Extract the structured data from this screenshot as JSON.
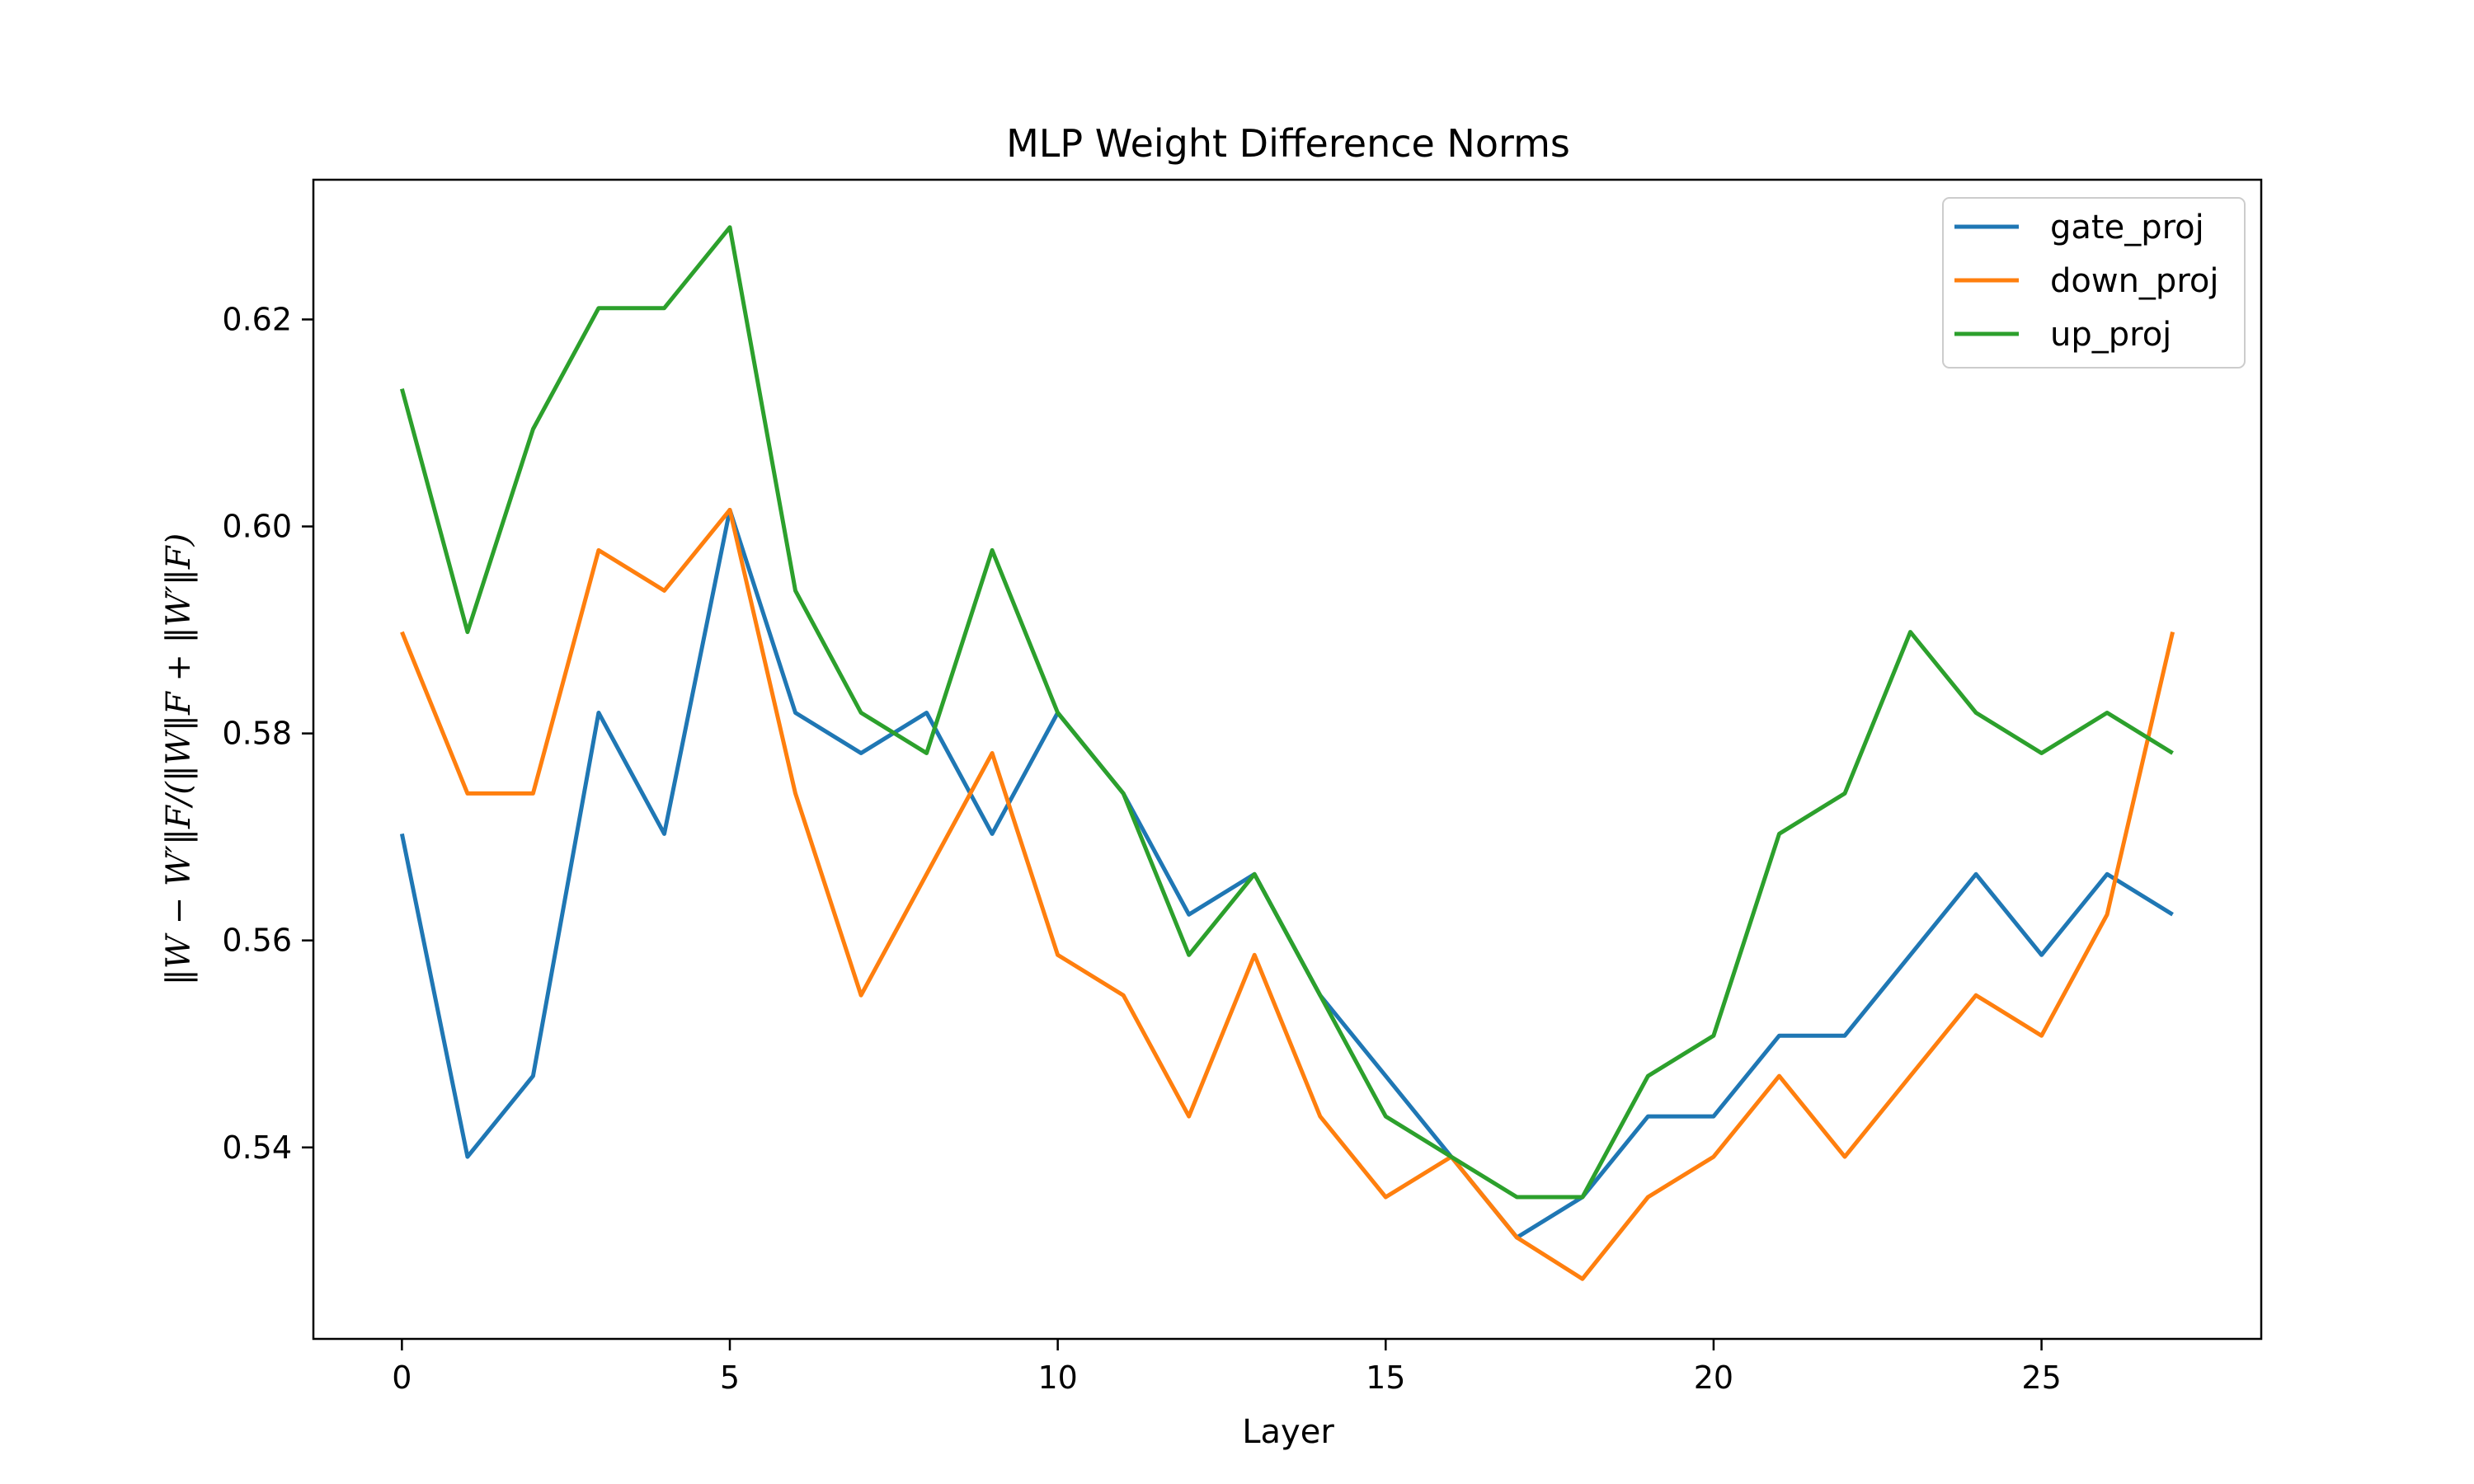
{
  "chart_data": {
    "type": "line",
    "title": "MLP Weight Difference Norms",
    "xlabel": "Layer",
    "ylabel": "‖W − W′‖F/(‖W‖F + ‖W′‖F)",
    "x": [
      0,
      1,
      2,
      3,
      4,
      5,
      6,
      7,
      8,
      9,
      10,
      11,
      12,
      13,
      14,
      15,
      16,
      17,
      18,
      19,
      20,
      21,
      22,
      23,
      24,
      25,
      26,
      27
    ],
    "xlim": [
      -1.35,
      28.35
    ],
    "ylim": [
      0.5215,
      0.6335
    ],
    "x_ticks": [
      0,
      5,
      10,
      15,
      20,
      25
    ],
    "y_ticks": [
      0.54,
      0.56,
      0.58,
      0.6,
      0.62
    ],
    "y_tick_labels": [
      "0.54",
      "0.56",
      "0.58",
      "0.60",
      "0.62"
    ],
    "grid": false,
    "legend_position": "top-right",
    "series": [
      {
        "name": "gate_proj",
        "color": "#1f77b4",
        "values": [
          0.5703,
          0.5391,
          0.5469,
          0.582,
          0.5703,
          0.6016,
          0.582,
          0.5781,
          0.582,
          0.5703,
          0.582,
          0.5742,
          0.5625,
          0.5664,
          0.5547,
          0.5469,
          0.5391,
          0.5313,
          0.5352,
          0.543,
          0.543,
          0.5508,
          0.5508,
          0.5586,
          0.5664,
          0.5586,
          0.5664,
          0.5625
        ]
      },
      {
        "name": "down_proj",
        "color": "#ff7f0e",
        "values": [
          0.5898,
          0.5742,
          0.5742,
          0.5977,
          0.5938,
          0.6016,
          0.5742,
          0.5547,
          0.5664,
          0.5781,
          0.5586,
          0.5547,
          0.543,
          0.5586,
          0.543,
          0.5352,
          0.5391,
          0.5313,
          0.5273,
          0.5352,
          0.5391,
          0.5469,
          0.5391,
          0.5469,
          0.5547,
          0.5508,
          0.5625,
          0.5898
        ]
      },
      {
        "name": "up_proj",
        "color": "#2ca02c",
        "values": [
          0.6133,
          0.5898,
          0.6094,
          0.6211,
          0.6211,
          0.6289,
          0.5938,
          0.582,
          0.5781,
          0.5977,
          0.582,
          0.5742,
          0.5586,
          0.5664,
          0.5547,
          0.543,
          0.5391,
          0.5352,
          0.5352,
          0.5469,
          0.5508,
          0.5703,
          0.5742,
          0.5898,
          0.582,
          0.5781,
          0.582,
          0.5781
        ]
      }
    ]
  }
}
